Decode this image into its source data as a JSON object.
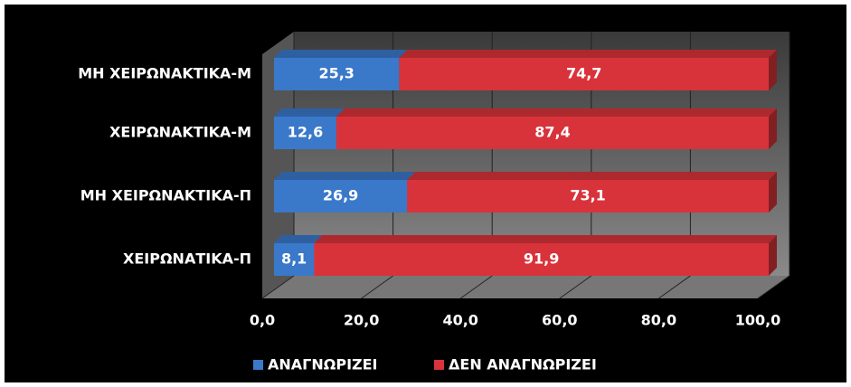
{
  "chart_data": {
    "type": "bar",
    "orientation": "horizontal",
    "stacked": true,
    "categories": [
      "ΜΗ ΧΕΙΡΩΝΑΚΤΙΚΑ-Μ",
      "ΧΕΙΡΩΝΑΚΤΙΚΑ-Μ",
      "ΜΗ ΧΕΙΡΩΝΑΚΤΙΚΑ-Π",
      "ΧΕΙΡΩΝΑΤΙΚΑ-Π"
    ],
    "series": [
      {
        "name": "ΑΝΑΓΝΩΡΙΖΕΙ",
        "color": "#3a78c9",
        "values": [
          25.3,
          12.6,
          26.9,
          8.1
        ],
        "value_labels": [
          "25,3",
          "12,6",
          "26,9",
          "8,1"
        ]
      },
      {
        "name": "ΔΕΝ ΑΝΑΓΝΩΡΙΖΕΙ",
        "color": "#d8333a",
        "values": [
          74.7,
          87.4,
          73.1,
          91.9
        ],
        "value_labels": [
          "74,7",
          "87,4",
          "73,1",
          "91,9"
        ]
      }
    ],
    "xlim": [
      0,
      100
    ],
    "xticks": [
      {
        "value": 0,
        "label": "0,0"
      },
      {
        "value": 20,
        "label": "20,0"
      },
      {
        "value": 40,
        "label": "40,0"
      },
      {
        "value": 60,
        "label": "60,0"
      },
      {
        "value": 80,
        "label": "80,0"
      },
      {
        "value": 100,
        "label": "100,0"
      }
    ],
    "grid": true,
    "legend": "bottom"
  }
}
